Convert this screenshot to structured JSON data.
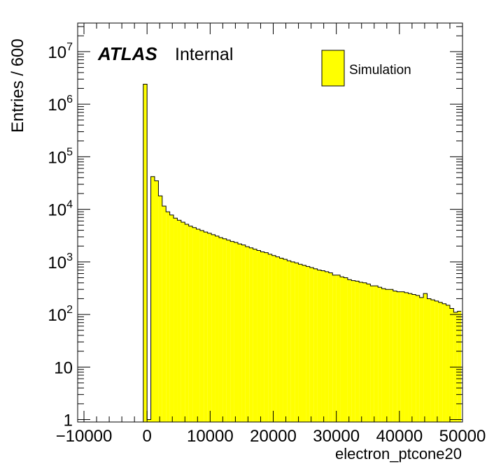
{
  "chart_data": {
    "type": "bar",
    "histogram": true,
    "xlabel": "electron_ptcone20",
    "ylabel": "Entries / 600",
    "xlim": [
      -11000,
      50000
    ],
    "ylim": [
      0.9,
      35000000
    ],
    "yscale": "log",
    "bin_width": 600,
    "x_ticks": [
      -10000,
      0,
      10000,
      20000,
      30000,
      40000,
      50000
    ],
    "x_tick_labels": [
      "−10000",
      "0",
      "10000",
      "20000",
      "30000",
      "40000",
      "50000"
    ],
    "y_ticks": [
      {
        "value": 1,
        "base": "1",
        "exp": ""
      },
      {
        "value": 10,
        "base": "10",
        "exp": ""
      },
      {
        "value": 100,
        "base": "10",
        "exp": "2"
      },
      {
        "value": 1000,
        "base": "10",
        "exp": "3"
      },
      {
        "value": 10000,
        "base": "10",
        "exp": "4"
      },
      {
        "value": 100000,
        "base": "10",
        "exp": "5"
      },
      {
        "value": 1000000,
        "base": "10",
        "exp": "6"
      },
      {
        "value": 10000000,
        "base": "10",
        "exp": "7"
      }
    ],
    "fill_color": "#ffff00",
    "line_color": "#000000",
    "series": [
      {
        "name": "Simulation",
        "bin_low_edges": [
          -600,
          0,
          600,
          1200,
          1800,
          2400,
          3000,
          3600,
          4200,
          4800,
          5400,
          6000,
          6600,
          7200,
          7800,
          8400,
          9000,
          9600,
          10200,
          10800,
          11400,
          12000,
          12600,
          13200,
          13800,
          14400,
          15000,
          15600,
          16200,
          16800,
          17400,
          18000,
          18600,
          19200,
          19800,
          20400,
          21000,
          21600,
          22200,
          22800,
          23400,
          24000,
          24600,
          25200,
          25800,
          26400,
          27000,
          27600,
          28200,
          28800,
          29400,
          30000,
          30600,
          31200,
          31800,
          32400,
          33000,
          33600,
          34200,
          34800,
          35400,
          36000,
          36600,
          37200,
          37800,
          38400,
          39000,
          39600,
          40200,
          40800,
          41400,
          42000,
          42600,
          43200,
          43800,
          44400,
          45000,
          45600,
          46200,
          46800,
          47400,
          48000,
          48600,
          49200
        ],
        "values": [
          2400000,
          1,
          42000,
          35000,
          18000,
          11500,
          9000,
          7800,
          6800,
          6200,
          5700,
          5200,
          4800,
          4500,
          4200,
          3950,
          3700,
          3500,
          3300,
          3100,
          2900,
          2750,
          2600,
          2450,
          2350,
          2200,
          2100,
          1950,
          1850,
          1750,
          1650,
          1550,
          1500,
          1400,
          1320,
          1250,
          1180,
          1120,
          1050,
          1000,
          960,
          900,
          860,
          820,
          780,
          740,
          700,
          680,
          650,
          620,
          560,
          560,
          520,
          500,
          460,
          440,
          430,
          410,
          400,
          380,
          350,
          350,
          330,
          310,
          300,
          300,
          280,
          270,
          270,
          260,
          250,
          240,
          230,
          210,
          250,
          200,
          190,
          180,
          170,
          160,
          150,
          130,
          110,
          115
        ]
      }
    ],
    "legend": {
      "position": "top-right",
      "entries": [
        "Simulation"
      ]
    },
    "annotations": {
      "atlas": "ATLAS",
      "status": "Internal"
    }
  }
}
